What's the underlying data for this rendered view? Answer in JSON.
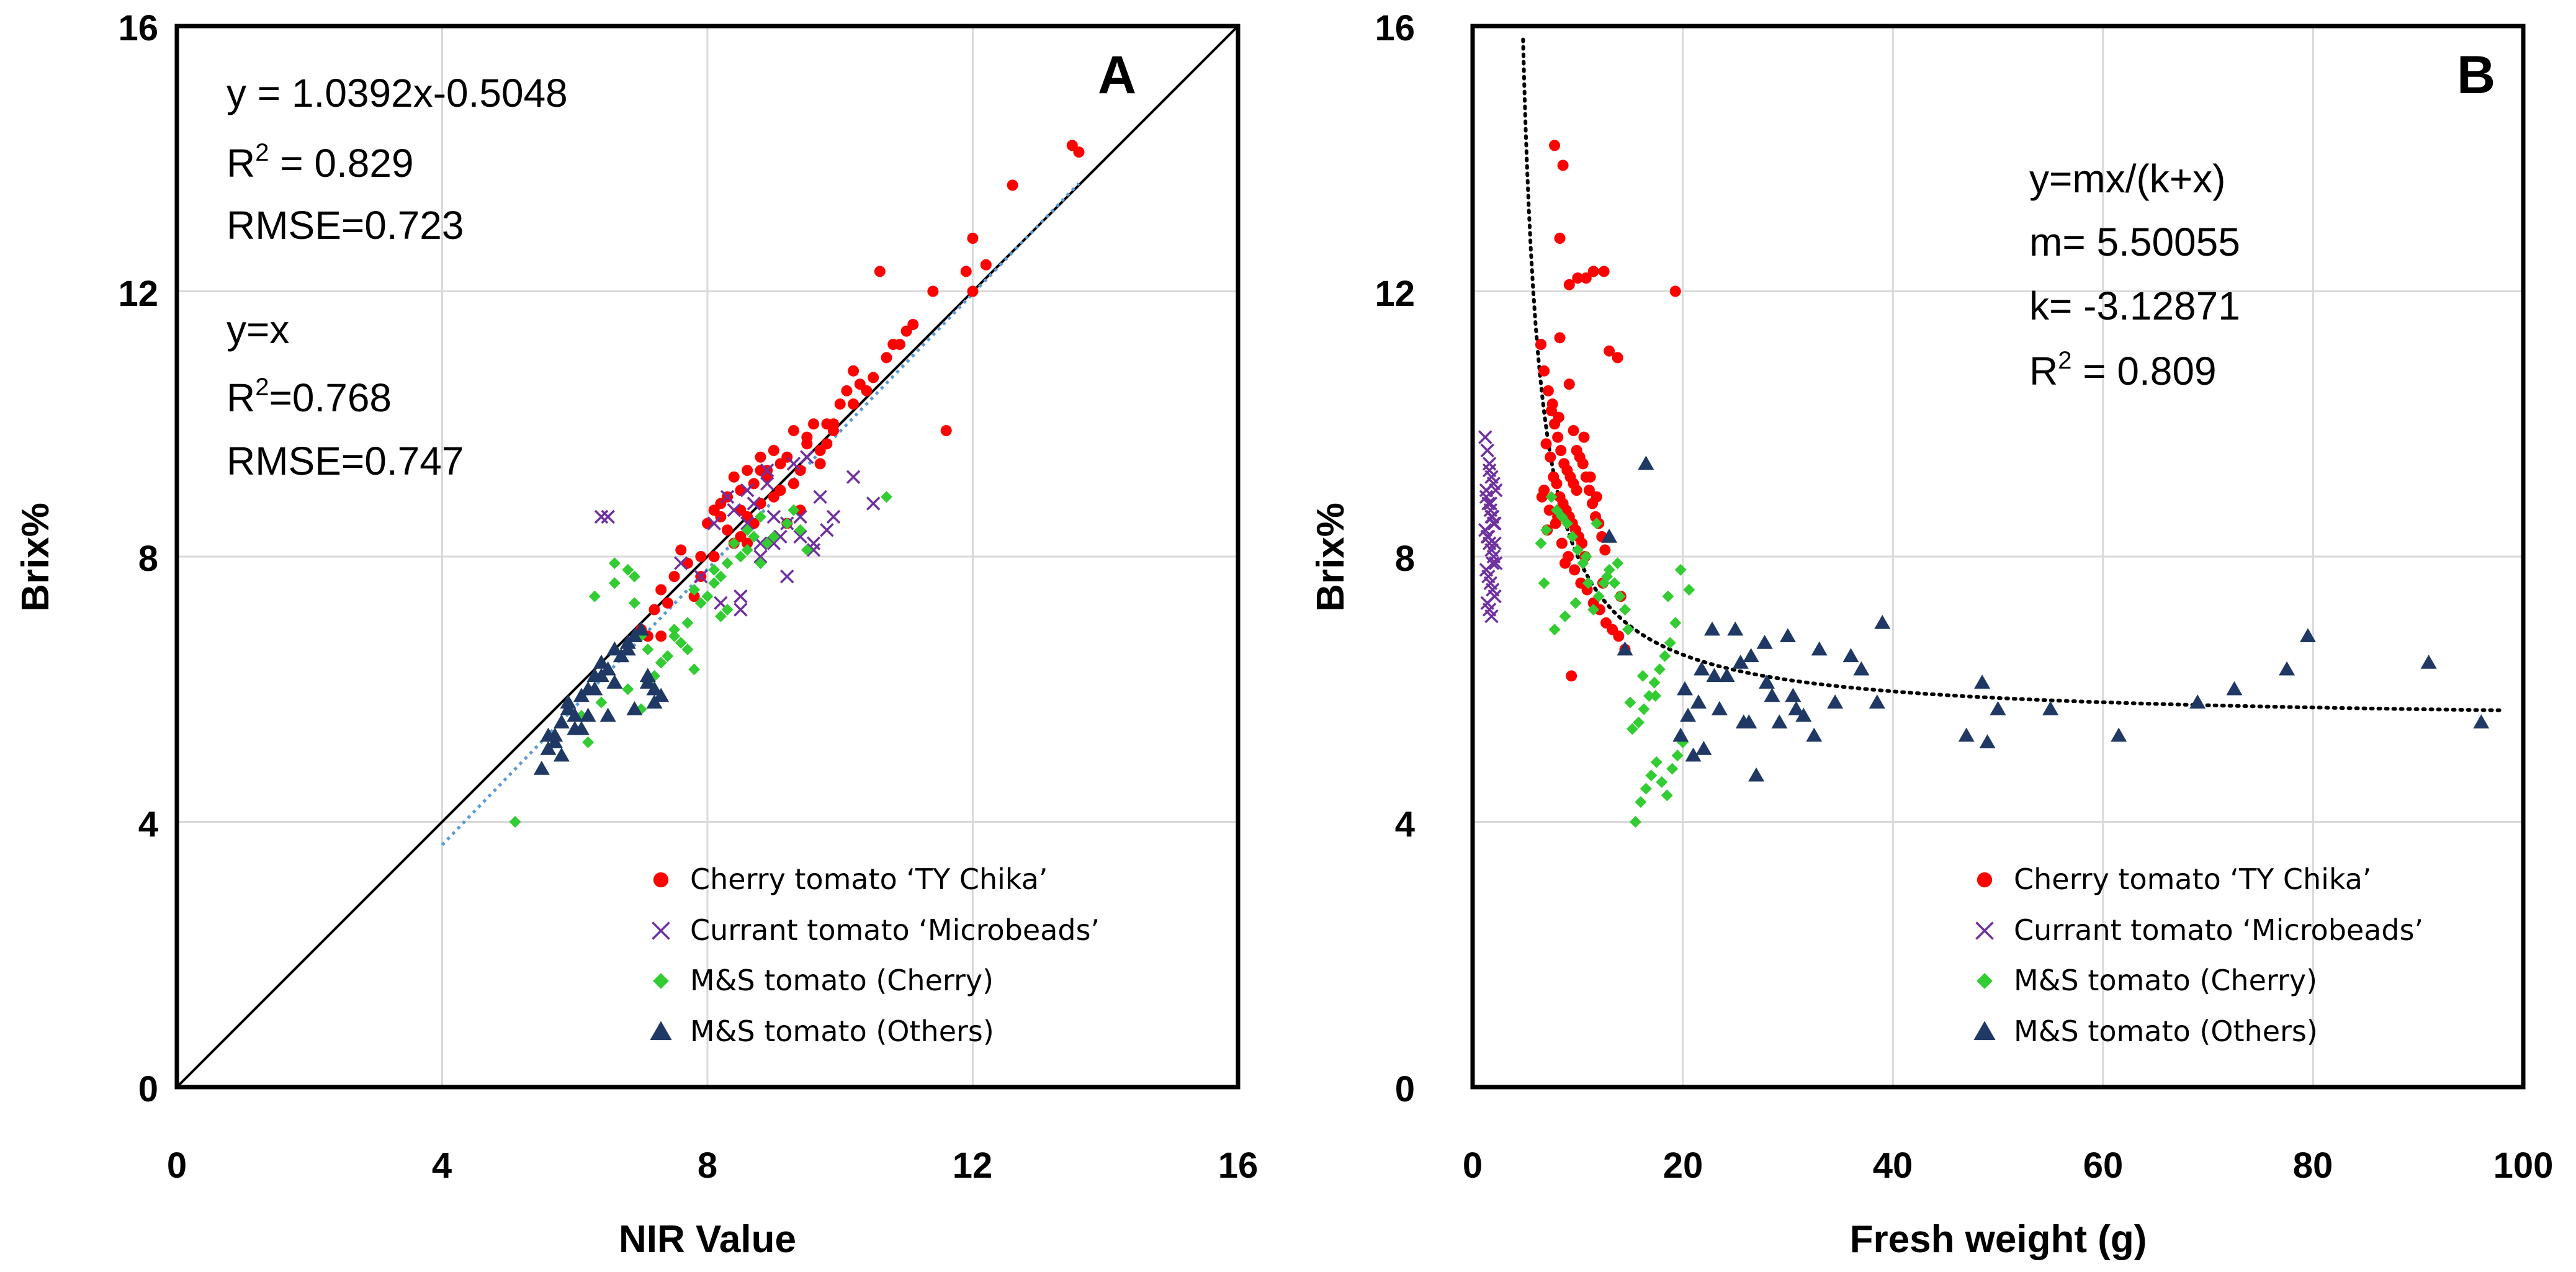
{
  "chart_data": [
    {
      "panel": "A",
      "type": "scatter",
      "title": "",
      "xlabel": "NIR Value",
      "ylabel": "Brix%",
      "xlim": [
        0,
        16
      ],
      "ylim": [
        0,
        16
      ],
      "xticks": [
        "0",
        "4",
        "8",
        "12",
        "16"
      ],
      "yticks": [
        "0",
        "4",
        "8",
        "12",
        "16"
      ],
      "grid": true,
      "annotations": {
        "fit_equation": "y = 1.0392x-0.5048",
        "fit_r2_prefix": "R",
        "fit_r2_exp": "2",
        "fit_r2_value": " = 0.829",
        "fit_rmse": "RMSE=0.723",
        "ident_equation": "y=x",
        "ident_r2_prefix": "R",
        "ident_r2_exp": "2",
        "ident_r2_value": "=0.768",
        "ident_rmse": "RMSE=0.747"
      },
      "lines": [
        {
          "name": "y=x",
          "style": "solid",
          "color": "#000000",
          "x": [
            0,
            16
          ],
          "y": [
            0,
            16
          ]
        },
        {
          "name": "linear fit",
          "style": "dotted",
          "color": "#5b9bd5",
          "slope": 1.0392,
          "intercept": -0.5048,
          "x_range": [
            4,
            13.6
          ]
        }
      ],
      "legend": {
        "position": "bottom-right",
        "entries": [
          "Cherry tomato ‘TY Chika’",
          "Currant tomato ‘Microbeads’",
          "M&S tomato (Cherry)",
          "M&S tomato (Others)"
        ]
      },
      "series": [
        {
          "name": "Cherry tomato ‘TY Chika’",
          "marker": "circle",
          "color": "#ff0000",
          "x": [
            13.5,
            13.6,
            12.6,
            12,
            12.2,
            11.9,
            12,
            11.4,
            11.1,
            11,
            10.9,
            10.7,
            10.5,
            10.4,
            10.3,
            10.2,
            10.1,
            10,
            10.2,
            9.8,
            9.9,
            9.6,
            9.7,
            9.5,
            9.3,
            9.2,
            9.4,
            9.1,
            9,
            8.9,
            8.8,
            8.6,
            8.7,
            8.5,
            8.4,
            8.3,
            8.2,
            8.1,
            8.6,
            8.8,
            9,
            9.2,
            9.4,
            8.5,
            8.3,
            8,
            7.9,
            7.7,
            7.5,
            7.3,
            7.2,
            7.4,
            7,
            7.6,
            7.8,
            8.1,
            8.4,
            8.7,
            9.1,
            9.5,
            9.8,
            10.6,
            11.6,
            8.9,
            9.3,
            8.2,
            7.9,
            7.3,
            7.1,
            8.6,
            9.7,
            10.8,
            9.9,
            8.5,
            8.8
          ],
          "y": [
            14.2,
            14.1,
            13.6,
            12.8,
            12.4,
            12.3,
            12,
            12,
            11.5,
            11.4,
            11.2,
            11,
            10.7,
            10.5,
            10.6,
            10.3,
            10.5,
            10.3,
            10.8,
            10,
            9.9,
            10,
            9.6,
            9.7,
            9.9,
            9.5,
            9.3,
            9.4,
            9.6,
            9.2,
            9.5,
            9.3,
            9.1,
            9,
            9.2,
            8.9,
            8.8,
            8.7,
            8.6,
            8.8,
            8.9,
            8.5,
            8.7,
            8.3,
            8.4,
            8.5,
            8,
            7.9,
            7.7,
            7.5,
            7.2,
            7.3,
            6.9,
            8.1,
            7.4,
            8,
            8.2,
            8.5,
            9,
            9.8,
            9.7,
            12.3,
            9.9,
            9.3,
            9.1,
            8.6,
            7.7,
            6.8,
            6.8,
            8.2,
            9.4,
            11.2,
            10,
            8.7,
            9.3
          ]
        },
        {
          "name": "Currant tomato ‘Microbeads’",
          "marker": "x",
          "color": "#7030a0",
          "x": [
            6.4,
            6.5,
            7.6,
            7.9,
            8.2,
            8.5,
            8.8,
            9,
            9.2,
            9.4,
            9.6,
            9.8,
            9,
            8.7,
            8.4,
            8.9,
            9.3,
            9.5,
            10.2,
            10.5,
            8.6,
            8.8,
            9.1,
            8.3,
            8.1,
            9.7,
            9.9,
            8.5,
            9.2,
            9.4,
            8.9,
            9.6,
            8.6
          ],
          "y": [
            8.6,
            8.6,
            7.9,
            7.7,
            7.3,
            7.4,
            8,
            8.2,
            8.5,
            8.3,
            8.1,
            8.4,
            8.6,
            8.8,
            8.7,
            9.3,
            9.4,
            9.5,
            9.2,
            8.8,
            8.5,
            8.2,
            8.3,
            8.9,
            8.5,
            8.9,
            8.6,
            7.2,
            7.7,
            8.6,
            9.1,
            8.2,
            9
          ]
        },
        {
          "name": "M&S tomato (Cherry)",
          "marker": "diamond",
          "color": "#33cc33",
          "x": [
            5.1,
            6.1,
            6.4,
            6.6,
            6.8,
            6.9,
            7,
            7.1,
            7.3,
            7.5,
            7.7,
            7.8,
            8,
            8.1,
            8.2,
            8.3,
            8.4,
            8.6,
            8.8,
            9,
            9.2,
            9.4,
            9.5,
            10.7,
            6.3,
            6.6,
            6.9,
            7.2,
            7.4,
            7.6,
            7.9,
            8.1,
            8.5,
            8.7,
            8.9,
            6.8,
            7,
            7.5,
            7.8,
            8.2,
            8.6,
            9.3,
            6.2,
            7.1,
            7.7,
            8.3,
            8.8
          ],
          "y": [
            4,
            5.6,
            5.8,
            7.6,
            7.8,
            7.7,
            6.8,
            6.6,
            6.4,
            6.9,
            7,
            7.5,
            7.4,
            7.6,
            7.7,
            7.9,
            8.2,
            8.4,
            8.6,
            8.3,
            8.5,
            8.4,
            8.1,
            8.9,
            7.4,
            7.9,
            7.3,
            6.2,
            6.5,
            6.7,
            7.3,
            7.8,
            8,
            8.3,
            8.2,
            6,
            5.7,
            6.8,
            6.3,
            7.1,
            8.1,
            8.7,
            5.2,
            6.1,
            6.6,
            7.2,
            7.9
          ]
        },
        {
          "name": "M&S tomato (Others)",
          "marker": "triangle",
          "color": "#1f3864",
          "x": [
            5.5,
            5.6,
            5.7,
            5.8,
            5.9,
            6,
            6.1,
            6.2,
            6.3,
            6.4,
            6.5,
            6.6,
            6.7,
            6.8,
            6.9,
            7,
            7.1,
            7.2,
            7.3,
            5.7,
            5.9,
            6.1,
            6.3,
            6.5,
            6.7,
            6.9,
            7.1,
            5.8,
            6,
            6.4,
            6.8,
            7.2,
            5.6,
            6.2,
            6.6
          ],
          "y": [
            4.8,
            5.1,
            5.3,
            5.5,
            5.7,
            5.6,
            5.9,
            6,
            6.2,
            6.4,
            6.3,
            6.6,
            6.5,
            6.7,
            6.8,
            6.9,
            6.1,
            6,
            5.9,
            5.2,
            5.8,
            5.4,
            6,
            5.6,
            6.5,
            5.7,
            6.2,
            5,
            5.4,
            6.2,
            6.6,
            5.8,
            5.3,
            5.6,
            6.1
          ]
        }
      ]
    },
    {
      "panel": "B",
      "type": "scatter",
      "title": "",
      "xlabel": "Fresh weight (g)",
      "ylabel": "Brix%",
      "xlim": [
        0,
        100
      ],
      "ylim": [
        0,
        16
      ],
      "xticks": [
        "0",
        "20",
        "40",
        "60",
        "80",
        "100"
      ],
      "yticks": [
        "0",
        "4",
        "8",
        "12",
        "16"
      ],
      "grid": true,
      "annotations": {
        "model": "y=mx/(k+x)",
        "m_value": "m= 5.50055",
        "k_value": "k= -3.12871",
        "r2_prefix": "R",
        "r2_exp": "2",
        "r2_value": " = 0.809"
      },
      "lines": [
        {
          "name": "saturation fit",
          "style": "dotted",
          "color": "#000000",
          "m": 5.50055,
          "k": -3.12871,
          "x_range": [
            4.8,
            98
          ]
        }
      ],
      "legend": {
        "position": "bottom-right",
        "entries": [
          "Cherry tomato ‘TY Chika’",
          "Currant tomato ‘Microbeads’",
          "M&S tomato (Cherry)",
          "M&S tomato (Others)"
        ]
      },
      "series": [
        {
          "name": "Cherry tomato ‘TY Chika’",
          "marker": "circle",
          "color": "#ff0000",
          "x": [
            7.8,
            8.6,
            8.3,
            9.2,
            10,
            10.8,
            11.5,
            12.5,
            13,
            13.8,
            19.3,
            6.5,
            6.8,
            7.2,
            7.5,
            7.8,
            8.1,
            8.4,
            8.7,
            9,
            9.3,
            9.6,
            9.9,
            10.2,
            10.5,
            10.8,
            11.1,
            11.4,
            11.7,
            12,
            12.3,
            12.6,
            7,
            7.4,
            7.7,
            8,
            8.3,
            8.6,
            8.9,
            9.2,
            9.5,
            9.8,
            10.1,
            10.4,
            6.8,
            7.3,
            7.9,
            8.5,
            9.1,
            9.7,
            10.3,
            10.9,
            11.5,
            12.1,
            12.7,
            13.3,
            13.9,
            14.5,
            9.2,
            8.3,
            7.6,
            10.6,
            11.8,
            8.8,
            9.4,
            7.1,
            6.6,
            8.2,
            9.9,
            10.7,
            12.4,
            14.1,
            8.1,
            9.6,
            11.2
          ],
          "y": [
            14.2,
            13.9,
            12.8,
            12.1,
            12.2,
            12.2,
            12.3,
            12.3,
            11.1,
            11,
            12,
            11.2,
            10.8,
            10.5,
            10.2,
            10,
            9.8,
            9.6,
            9.4,
            9.3,
            9.2,
            9.1,
            9,
            9.5,
            9.4,
            9.2,
            9,
            8.8,
            8.6,
            8.5,
            8.3,
            8.1,
            9.7,
            9.5,
            9.2,
            9.1,
            8.9,
            8.8,
            8.7,
            8.6,
            8.5,
            8.4,
            8.3,
            8.2,
            9,
            8.7,
            8.5,
            8.2,
            8,
            7.8,
            7.6,
            7.5,
            7.3,
            7.2,
            7,
            6.9,
            6.8,
            6.6,
            10.6,
            11.3,
            10.3,
            9.8,
            8.9,
            7.9,
            6.2,
            8.4,
            8.9,
            10.1,
            9.6,
            8,
            7.6,
            7.4,
            8.6,
            9.9,
            9.2
          ]
        },
        {
          "name": "Currant tomato ‘Microbeads’",
          "marker": "x",
          "color": "#7030a0",
          "x": [
            1.2,
            1.4,
            1.6,
            1.8,
            2,
            2.2,
            1.3,
            1.5,
            1.7,
            1.9,
            2.1,
            1.2,
            1.4,
            1.6,
            1.8,
            2,
            2.2,
            1.3,
            1.5,
            1.7,
            1.9,
            2.1,
            1.4,
            1.6,
            1.8,
            2,
            1.5,
            1.7,
            1.9,
            1.3,
            1.6,
            1.8,
            2.1
          ],
          "y": [
            9.8,
            9.6,
            9.4,
            9.2,
            9.1,
            9,
            8.9,
            8.8,
            8.7,
            8.6,
            8.5,
            8.4,
            8.3,
            8.2,
            8.1,
            8,
            7.9,
            7.8,
            7.7,
            7.6,
            7.5,
            7.4,
            7.3,
            7.2,
            8.6,
            8.5,
            8.3,
            8.8,
            7.9,
            9,
            9.3,
            7.1,
            8.2
          ]
        },
        {
          "name": "M&S tomato (Cherry)",
          "marker": "diamond",
          "color": "#33cc33",
          "x": [
            15.5,
            16,
            16.5,
            17,
            17.5,
            18,
            18.5,
            19,
            19.5,
            20,
            15.2,
            15.8,
            16.3,
            16.8,
            17.3,
            17.8,
            18.3,
            18.8,
            19.3,
            14.5,
            14,
            13.5,
            13,
            12.5,
            12,
            11.5,
            11,
            10.5,
            10,
            9.5,
            9,
            8.5,
            8,
            7.5,
            7,
            6.5,
            15,
            16.2,
            17.4,
            18.6,
            19.8,
            20.6,
            14.8,
            13.8,
            12.8,
            11.8,
            10.8,
            9.8,
            8.8,
            7.8,
            6.8
          ],
          "y": [
            4,
            4.3,
            4.5,
            4.7,
            4.9,
            4.6,
            4.4,
            4.8,
            5,
            5.2,
            5.4,
            5.5,
            5.7,
            5.9,
            6.1,
            6.3,
            6.5,
            6.7,
            7,
            7.2,
            7.4,
            7.6,
            7.8,
            7.6,
            7.4,
            7.2,
            7.6,
            7.9,
            8.1,
            8.3,
            8.5,
            8.6,
            8.7,
            8.9,
            8.4,
            8.2,
            5.8,
            6.2,
            5.9,
            7.4,
            7.8,
            7.5,
            6.9,
            7.9,
            7.7,
            8.5,
            8,
            7.3,
            7.1,
            6.9,
            7.6
          ]
        },
        {
          "name": "M&S tomato (Others)",
          "marker": "triangle",
          "color": "#1f3864",
          "x": [
            16.5,
            14.5,
            13,
            19.8,
            20.5,
            21,
            21.5,
            22,
            22.8,
            23.5,
            24.2,
            25,
            25.8,
            26.5,
            27,
            27.8,
            28.5,
            29.2,
            30,
            30.8,
            31.5,
            32.5,
            33,
            34.5,
            36,
            37,
            39,
            38.5,
            47,
            48.5,
            49,
            50,
            55,
            61.5,
            69,
            72.5,
            77.5,
            79.5,
            91,
            96,
            23,
            25.5,
            28,
            30.5,
            20.2,
            21.8,
            26.3
          ],
          "y": [
            9.4,
            6.6,
            8.3,
            5.3,
            5.6,
            5,
            5.8,
            5.1,
            6.9,
            5.7,
            6.2,
            6.9,
            5.5,
            6.5,
            4.7,
            6.7,
            5.9,
            5.5,
            6.8,
            5.7,
            5.6,
            5.3,
            6.6,
            5.8,
            6.5,
            6.3,
            7,
            5.8,
            5.3,
            6.1,
            5.2,
            5.7,
            5.7,
            5.3,
            5.8,
            6,
            6.3,
            6.8,
            6.4,
            5.5,
            6.2,
            6.4,
            6.1,
            5.9,
            6,
            6.3,
            5.5
          ]
        }
      ]
    }
  ]
}
